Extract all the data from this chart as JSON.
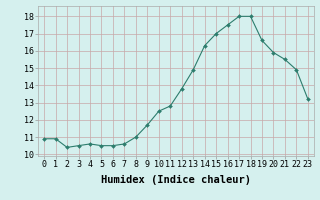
{
  "x": [
    0,
    1,
    2,
    3,
    4,
    5,
    6,
    7,
    8,
    9,
    10,
    11,
    12,
    13,
    14,
    15,
    16,
    17,
    18,
    19,
    20,
    21,
    22,
    23
  ],
  "y": [
    10.9,
    10.9,
    10.4,
    10.5,
    10.6,
    10.5,
    10.5,
    10.6,
    11.0,
    11.7,
    12.5,
    12.8,
    13.8,
    14.9,
    16.3,
    17.0,
    17.5,
    18.0,
    18.0,
    16.6,
    15.9,
    15.5,
    14.9,
    13.2
  ],
  "line_color": "#2d7d6d",
  "marker": "D",
  "marker_size": 2.0,
  "bg_color": "#d5f0ee",
  "grid_major_color": "#c8a8a8",
  "grid_minor_color": "#d8b8b8",
  "xlabel": "Humidex (Indice chaleur)",
  "xlim": [
    -0.5,
    23.5
  ],
  "ylim": [
    9.9,
    18.6
  ],
  "yticks": [
    10,
    11,
    12,
    13,
    14,
    15,
    16,
    17,
    18
  ],
  "xticks": [
    0,
    1,
    2,
    3,
    4,
    5,
    6,
    7,
    8,
    9,
    10,
    11,
    12,
    13,
    14,
    15,
    16,
    17,
    18,
    19,
    20,
    21,
    22,
    23
  ],
  "xtick_labels": [
    "0",
    "1",
    "2",
    "3",
    "4",
    "5",
    "6",
    "7",
    "8",
    "9",
    "10",
    "11",
    "12",
    "13",
    "14",
    "15",
    "16",
    "17",
    "18",
    "19",
    "20",
    "21",
    "22",
    "23"
  ],
  "xlabel_fontsize": 7.5,
  "tick_fontsize": 6.0,
  "line_width": 0.8
}
